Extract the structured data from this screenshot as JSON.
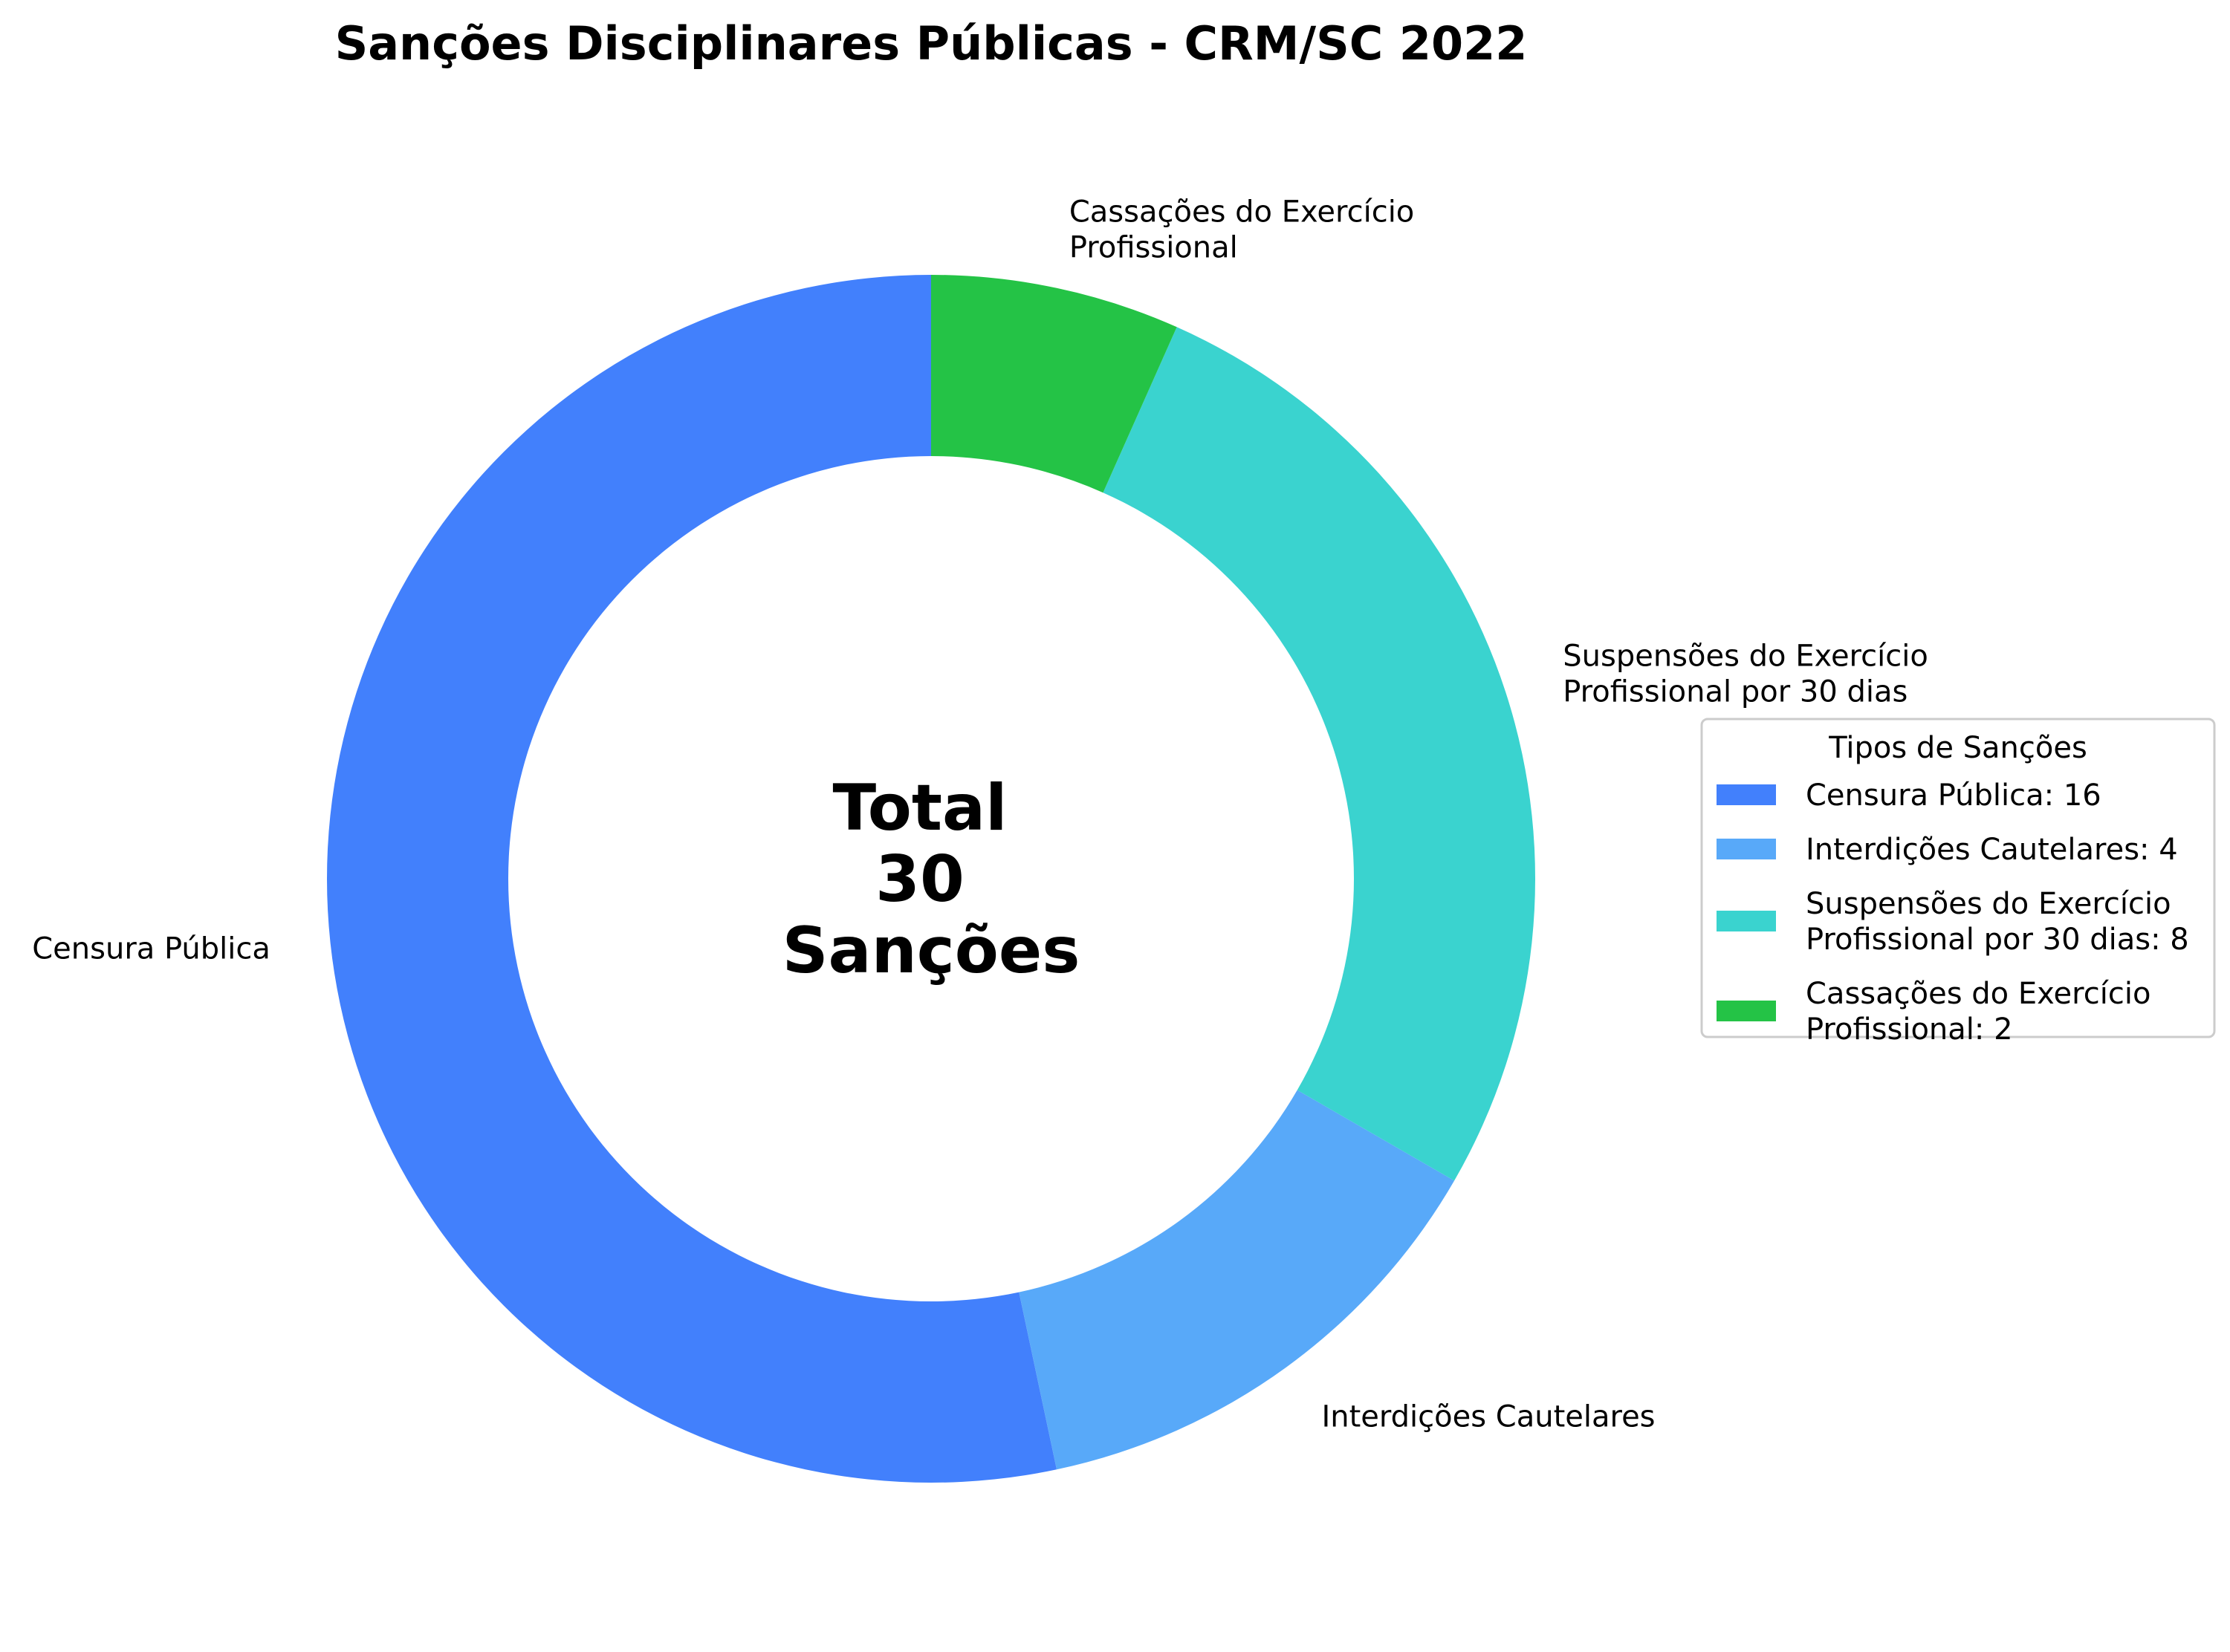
{
  "chart_data": {
    "type": "pie",
    "subtype": "donut",
    "title": "Sanções Disciplinares Públicas - CRM/SC 2022",
    "center_text": [
      "Total",
      "30",
      "Sanções"
    ],
    "total": 30,
    "start_angle_deg": 90,
    "direction": "counterclockwise",
    "slices": [
      {
        "category": "Censura Pública",
        "label_lines": [
          "Censura Pública"
        ],
        "value": 16,
        "color": "#4280FC"
      },
      {
        "category": "Interdições Cautelares",
        "label_lines": [
          "Interdições Cautelares"
        ],
        "value": 4,
        "color": "#58A9F9"
      },
      {
        "category": "Suspensões do Exercício Profissional por 30 dias",
        "label_lines": [
          "Suspensões do Exercício",
          "Profissional por 30 dias"
        ],
        "value": 8,
        "color": "#3AD3CF"
      },
      {
        "category": "Cassações do Exercício Profissional",
        "label_lines": [
          "Cassações do Exercício",
          "Profissional"
        ],
        "value": 2,
        "color": "#24C346"
      }
    ],
    "legend": {
      "title": "Tipos de Sanções",
      "placement": "center-right",
      "entries": [
        {
          "lines": [
            "Censura Pública: 16"
          ],
          "color": "#4280FC"
        },
        {
          "lines": [
            "Interdições Cautelares: 4"
          ],
          "color": "#58A9F9"
        },
        {
          "lines": [
            "Suspensões do Exercício",
            "Profissional por 30 dias: 8"
          ],
          "color": "#3AD3CF"
        },
        {
          "lines": [
            "Cassações do Exercício",
            "Profissional: 2"
          ],
          "color": "#24C346"
        }
      ]
    }
  }
}
